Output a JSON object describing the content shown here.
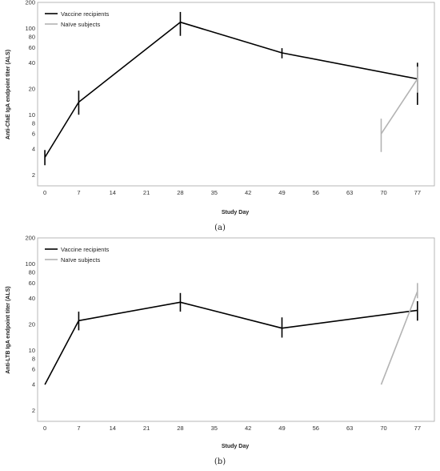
{
  "colors": {
    "vaccine": "#000000",
    "naive": "#b3b3b3",
    "frame": "#a6a6a6"
  },
  "chart_data": [
    {
      "type": "line",
      "panel_label": "(a)",
      "xlabel": "Study Day",
      "ylabel": "Anti-CfaE IgA endpoint titer (ALS)",
      "x_ticks": [
        "0",
        "7",
        "14",
        "21",
        "28",
        "35",
        "42",
        "49",
        "56",
        "63",
        "70",
        "77"
      ],
      "y_scale": "log",
      "y_ticks": [
        "2",
        "4",
        "6",
        "8",
        "10",
        "20",
        "40",
        "60",
        "80",
        "100",
        "200"
      ],
      "ylim": [
        1.5,
        200
      ],
      "xlim": [
        -1.5,
        80.5
      ],
      "legend_position": "top-left",
      "series": [
        {
          "name": "Vaccine recipients",
          "color": "#000000",
          "points": [
            {
              "x": 0,
              "y": 3.2,
              "lo": 2.6,
              "hi": 3.9
            },
            {
              "x": 7,
              "y": 14,
              "lo": 10,
              "hi": 19
            },
            {
              "x": 28,
              "y": 118,
              "lo": 82,
              "hi": 155
            },
            {
              "x": 49,
              "y": 52,
              "lo": 45,
              "hi": 59
            },
            {
              "x": 77,
              "y": 26,
              "lo": 13,
              "hi": 40
            }
          ]
        },
        {
          "name": "Naïve subjects",
          "color": "#b3b3b3",
          "points": [
            {
              "x": 69.5,
              "y": 6,
              "lo": 3.7,
              "hi": 9
            },
            {
              "x": 77,
              "y": 26,
              "lo": 18,
              "hi": 36
            }
          ]
        }
      ]
    },
    {
      "type": "line",
      "panel_label": "(b)",
      "xlabel": "Study Day",
      "ylabel": "Anti-LTB IgA endpoint titer (ALS)",
      "x_ticks": [
        "0",
        "7",
        "14",
        "21",
        "28",
        "35",
        "42",
        "49",
        "56",
        "63",
        "70",
        "77"
      ],
      "y_scale": "log",
      "y_ticks": [
        "2",
        "4",
        "6",
        "8",
        "10",
        "20",
        "40",
        "60",
        "80",
        "100",
        "200"
      ],
      "ylim": [
        1.5,
        200
      ],
      "xlim": [
        -1.5,
        80.5
      ],
      "legend_position": "top-left",
      "series": [
        {
          "name": "Vaccine recipients",
          "color": "#000000",
          "points": [
            {
              "x": 0,
              "y": 4,
              "lo": 4,
              "hi": 4
            },
            {
              "x": 7,
              "y": 22,
              "lo": 17,
              "hi": 28
            },
            {
              "x": 28,
              "y": 36,
              "lo": 28,
              "hi": 46
            },
            {
              "x": 49,
              "y": 18,
              "lo": 14,
              "hi": 24
            },
            {
              "x": 77,
              "y": 29,
              "lo": 22,
              "hi": 37
            }
          ]
        },
        {
          "name": "Naïve subjects",
          "color": "#b3b3b3",
          "points": [
            {
              "x": 69.5,
              "y": 4,
              "lo": 4,
              "hi": 4
            },
            {
              "x": 77,
              "y": 48,
              "lo": 40,
              "hi": 60
            }
          ]
        }
      ]
    }
  ]
}
